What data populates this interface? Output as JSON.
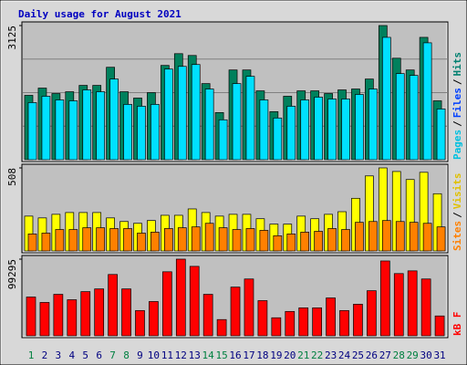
{
  "title": "Daily usage for August 2021",
  "legend_separator": "/",
  "chart_data": [
    {
      "type": "bar",
      "ylim": [
        0,
        3125
      ],
      "yticks": [
        3125
      ],
      "legend": [
        {
          "name": "Pages",
          "color": "#00c0e0"
        },
        {
          "name": "Files",
          "color": "#0040ff"
        },
        {
          "name": "Hits",
          "color": "#008070"
        }
      ],
      "series": [
        {
          "name": "Hits",
          "color": "#00805c",
          "values": [
            1499,
            1668,
            1541,
            1583,
            1731,
            1731,
            2153,
            1583,
            1436,
            1562,
            2196,
            2470,
            2428,
            1773,
            1098,
            2090,
            2090,
            1604,
            1119,
            1478,
            1604,
            1604,
            1541,
            1626,
            1647,
            1879,
            3125,
            2364,
            2090,
            2850,
            1372
          ]
        },
        {
          "name": "Pages",
          "color": "#00e0ff",
          "values": [
            1330,
            1478,
            1393,
            1372,
            1626,
            1583,
            1879,
            1288,
            1246,
            1288,
            2111,
            2174,
            2217,
            1647,
            929,
            1773,
            1942,
            1393,
            971,
            1246,
            1393,
            1457,
            1414,
            1414,
            1520,
            1647,
            2850,
            2006,
            1963,
            2723,
            1182
          ]
        }
      ]
    },
    {
      "type": "bar",
      "ylim": [
        0,
        508
      ],
      "yticks": [
        508
      ],
      "legend": [
        {
          "name": "Sites",
          "color": "#ff8000"
        },
        {
          "name": "Visits",
          "color": "#e0c000"
        }
      ],
      "series": [
        {
          "name": "Visits",
          "color": "#ffff00",
          "values": [
            213,
            202,
            224,
            235,
            235,
            235,
            202,
            180,
            169,
            186,
            218,
            218,
            257,
            235,
            213,
            224,
            224,
            197,
            164,
            164,
            213,
            197,
            224,
            240,
            322,
            459,
            508,
            486,
            437,
            481,
            350
          ]
        },
        {
          "name": "Sites",
          "color": "#ff8000",
          "values": [
            104,
            109,
            131,
            131,
            142,
            142,
            137,
            137,
            109,
            115,
            137,
            142,
            147,
            169,
            142,
            131,
            137,
            126,
            93,
            104,
            115,
            120,
            137,
            131,
            175,
            180,
            186,
            180,
            175,
            169,
            147
          ]
        }
      ]
    },
    {
      "type": "bar",
      "ylim": [
        0,
        99295
      ],
      "yticks": [
        99295
      ],
      "legend": [
        {
          "name": "kB F",
          "color": "#ff0000"
        }
      ],
      "series": [
        {
          "name": "kB F",
          "color": "#ff0000",
          "values": [
            50233,
            43223,
            53737,
            46728,
            57242,
            60746,
            79437,
            60746,
            32710,
            44391,
            82942,
            99295,
            89951,
            53737,
            21028,
            63083,
            73597,
            45560,
            23364,
            31541,
            36214,
            36214,
            49064,
            32710,
            40887,
            58410,
            96961,
            80606,
            84110,
            73597,
            25700
          ]
        }
      ],
      "categories": [
        "1",
        "2",
        "3",
        "4",
        "5",
        "6",
        "7",
        "8",
        "9",
        "10",
        "11",
        "12",
        "13",
        "14",
        "15",
        "16",
        "17",
        "18",
        "19",
        "20",
        "21",
        "22",
        "23",
        "24",
        "25",
        "26",
        "27",
        "28",
        "29",
        "30",
        "31"
      ],
      "category_colors": [
        "#008040",
        "#000080",
        "#000080",
        "#000080",
        "#000080",
        "#000080",
        "#008040",
        "#008040",
        "#000080",
        "#000080",
        "#000080",
        "#000080",
        "#000080",
        "#008040",
        "#008040",
        "#000080",
        "#000080",
        "#000080",
        "#000080",
        "#000080",
        "#008040",
        "#008040",
        "#000080",
        "#000080",
        "#000080",
        "#000080",
        "#000080",
        "#008040",
        "#008040",
        "#000080",
        "#000080"
      ]
    }
  ]
}
